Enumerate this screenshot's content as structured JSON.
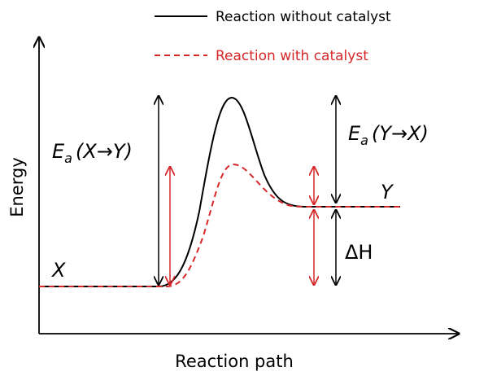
{
  "legend": {
    "items": [
      {
        "label": "Reaction without catalyst"
      },
      {
        "label": "Reaction with catalyst"
      }
    ]
  },
  "axes": {
    "y_label": "Energy",
    "x_label": "Reaction path"
  },
  "states": {
    "start": "X",
    "end": "Y"
  },
  "annotations": {
    "forward_barrier": {
      "symbol": "E",
      "subscript": "a",
      "argument": "(X→Y)"
    },
    "reverse_barrier": {
      "symbol": "E",
      "subscript": "a",
      "argument": "(Y→X)"
    },
    "enthalpy": "ΔH"
  }
}
